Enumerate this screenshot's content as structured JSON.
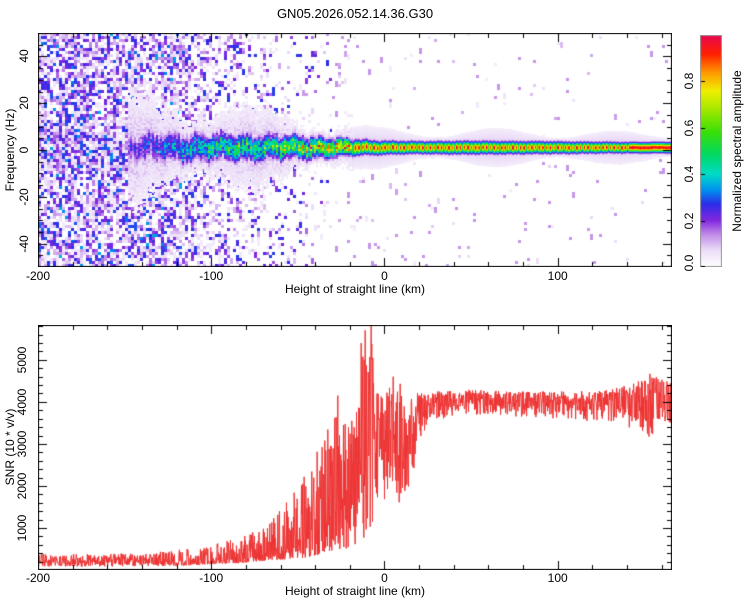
{
  "chart_data": [
    {
      "type": "heatmap",
      "title": "GN05.2026.052.14.36.G30",
      "xlabel": "Height of straight line (km)",
      "ylabel": "Frequency (Hz)",
      "xlim": [
        -200,
        166
      ],
      "ylim": [
        -50,
        50
      ],
      "xticks": [
        -200,
        -100,
        0,
        100
      ],
      "xtick_labels": [
        "-200",
        "-100",
        "0",
        "100"
      ],
      "x_minor_step": 20,
      "yticks": [
        -40,
        -20,
        0,
        20,
        40
      ],
      "ytick_labels": [
        "-40",
        "-20",
        "0",
        "20",
        "40"
      ],
      "y_minor_step": 5,
      "grid": false,
      "colorbar": {
        "label": "Normalized spectral amplitude",
        "range": [
          0,
          1
        ],
        "ticks": [
          0.0,
          0.2,
          0.4,
          0.6,
          0.8
        ],
        "tick_labels": [
          "0.0",
          "0.2",
          "0.4",
          "0.6",
          "0.8"
        ],
        "stops": [
          [
            0,
            "#ffffff"
          ],
          [
            0.07,
            "#ecdef8"
          ],
          [
            0.14,
            "#c08ae8"
          ],
          [
            0.2,
            "#8228e0"
          ],
          [
            0.27,
            "#2d2de8"
          ],
          [
            0.33,
            "#0090f0"
          ],
          [
            0.4,
            "#00dcc8"
          ],
          [
            0.48,
            "#00d868"
          ],
          [
            0.58,
            "#38e008"
          ],
          [
            0.68,
            "#a4e800"
          ],
          [
            0.76,
            "#f0f000"
          ],
          [
            0.84,
            "#ff9800"
          ],
          [
            0.92,
            "#ff2000"
          ],
          [
            1.0,
            "#e80850"
          ]
        ]
      },
      "noise_speckle": {
        "comment": "full-band purple speckle noise; density vs height (km)",
        "x": [
          -200,
          -120,
          -112,
          -100,
          -80,
          -55,
          -30,
          -10,
          0,
          166
        ],
        "density": [
          0.72,
          0.7,
          0.5,
          0.38,
          0.3,
          0.15,
          0.06,
          0.03,
          0.02,
          0.012
        ]
      },
      "signal_band": {
        "comment": "narrow spectral line near 0 Hz; parameters vs height (km)",
        "center_hz": 1.0,
        "x": [
          -148,
          -135,
          -120,
          -105,
          -90,
          -75,
          -60,
          -45,
          -35,
          -25,
          -15,
          -5,
          5,
          20,
          50,
          90,
          120,
          145,
          166
        ],
        "intensity": [
          0.22,
          0.3,
          0.38,
          0.45,
          0.5,
          0.55,
          0.62,
          0.72,
          0.8,
          0.88,
          0.95,
          0.95,
          0.95,
          0.95,
          0.95,
          0.95,
          0.95,
          1.0,
          1.0
        ],
        "sigma_hz": [
          4.5,
          4.2,
          4.0,
          3.8,
          3.6,
          3.4,
          3.1,
          2.8,
          2.5,
          2.2,
          1.9,
          1.7,
          1.6,
          1.5,
          1.6,
          1.5,
          1.4,
          1.3,
          1.3
        ],
        "wobble_hz": [
          2.5,
          2.5,
          2.4,
          2.2,
          2.1,
          2.0,
          1.9,
          1.7,
          1.4,
          1.1,
          0.7,
          0.4,
          0.25,
          0.15,
          0.15,
          0.15,
          0.15,
          0.15,
          0.15
        ]
      }
    },
    {
      "type": "line",
      "xlabel": "Height of straight line (km)",
      "ylabel": "SNR (10 * v/v)",
      "xlim": [
        -200,
        166
      ],
      "ylim": [
        0,
        5830
      ],
      "xticks": [
        -200,
        -100,
        0,
        100
      ],
      "xtick_labels": [
        "-200",
        "-100",
        "0",
        "100"
      ],
      "x_minor_step": 20,
      "yticks": [
        1000,
        2000,
        3000,
        4000,
        5000
      ],
      "ytick_labels": [
        "1000",
        "2000",
        "3000",
        "4000",
        "5000"
      ],
      "y_minor_step": 200,
      "color": "#ee3333",
      "envelope": {
        "comment": "noisy SNR trace; low/high envelope and spike-bias vs height (km)",
        "x": [
          -200,
          -170,
          -140,
          -125,
          -115,
          -105,
          -95,
          -85,
          -75,
          -65,
          -55,
          -48,
          -42,
          -36,
          -30,
          -25,
          -20,
          -15,
          -11,
          -8,
          -5,
          -2,
          0,
          3,
          6,
          9,
          12,
          16,
          20,
          26,
          35,
          50,
          70,
          90,
          110,
          130,
          145,
          152,
          158,
          166
        ],
        "low": [
          80,
          80,
          90,
          100,
          110,
          130,
          150,
          160,
          200,
          230,
          260,
          280,
          320,
          380,
          420,
          480,
          520,
          600,
          800,
          1000,
          1300,
          1500,
          1600,
          1800,
          1500,
          1000,
          1400,
          2200,
          3000,
          3400,
          3600,
          3650,
          3650,
          3600,
          3550,
          3450,
          3300,
          3100,
          3300,
          3400
        ],
        "high": [
          380,
          380,
          400,
          450,
          500,
          580,
          650,
          750,
          950,
          1300,
          1700,
          2100,
          2700,
          3200,
          3900,
          4100,
          3800,
          4000,
          5830,
          5830,
          4300,
          4200,
          4200,
          4400,
          4450,
          4400,
          4100,
          4200,
          4250,
          4250,
          4250,
          4300,
          4250,
          4250,
          4250,
          4300,
          4450,
          4700,
          4600,
          4500
        ],
        "bias": [
          1.0,
          1.0,
          1.1,
          1.6,
          2.2,
          2.4,
          2.4,
          2.4,
          2.3,
          2.2,
          2.0,
          1.9,
          1.8,
          1.6,
          1.4,
          1.3,
          1.3,
          1.2,
          1.1,
          1.0,
          0.9,
          0.9,
          0.9,
          0.9,
          0.9,
          0.95,
          0.9,
          0.85,
          0.8,
          0.75,
          0.7,
          0.7,
          0.7,
          0.7,
          0.7,
          0.7,
          0.75,
          0.8,
          0.75,
          0.75
        ]
      },
      "spikes": [
        {
          "x": -7.6,
          "v": 5830
        },
        {
          "x": -13.5,
          "v": 5400
        },
        {
          "x": 9.0,
          "v": 4430
        },
        {
          "x": -27.0,
          "v": 4150
        },
        {
          "x": 5.0,
          "v": 4600
        }
      ]
    }
  ]
}
